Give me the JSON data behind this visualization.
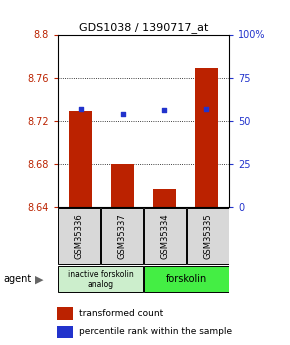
{
  "title": "GDS1038 / 1390717_at",
  "samples": [
    "GSM35336",
    "GSM35337",
    "GSM35334",
    "GSM35335"
  ],
  "bar_values": [
    8.729,
    8.68,
    8.657,
    8.769
  ],
  "percentile_values": [
    57,
    54,
    56,
    57
  ],
  "y_min": 8.64,
  "y_max": 8.8,
  "y_ticks": [
    8.64,
    8.68,
    8.72,
    8.76,
    8.8
  ],
  "y_tick_labels": [
    "8.64",
    "8.68",
    "8.72",
    "8.76",
    "8.8"
  ],
  "right_y_ticks": [
    0,
    25,
    50,
    75,
    100
  ],
  "right_y_tick_labels": [
    "0",
    "25",
    "50",
    "75",
    "100%"
  ],
  "bar_color": "#bb2200",
  "dot_color": "#2233cc",
  "bar_base": 8.64,
  "group1_label": "inactive forskolin\nanalog",
  "group2_label": "forskolin",
  "group1_color": "#cceecc",
  "group2_color": "#44ee44",
  "agent_label": "agent",
  "legend_bar_label": "transformed count",
  "legend_dot_label": "percentile rank within the sample"
}
